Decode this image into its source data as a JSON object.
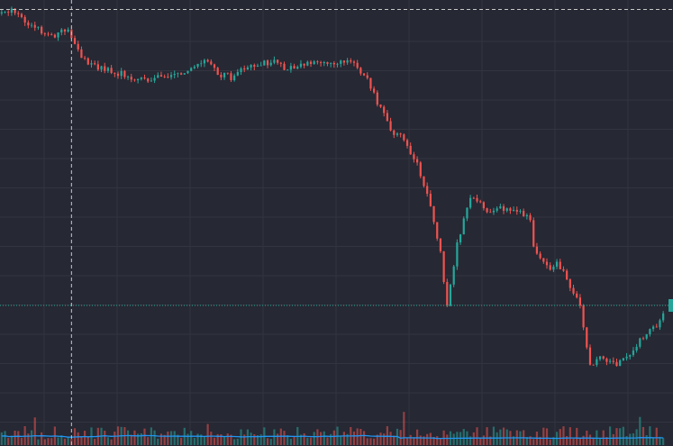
{
  "chart_data": {
    "type": "candlestick",
    "title": "",
    "xlabel": "",
    "ylabel": "",
    "grid": true,
    "legend": "none",
    "ylim": [
      0,
      100
    ],
    "colors": {
      "background": "#262833",
      "grid": "#32353f",
      "up": "#26a69a",
      "down": "#ef5350",
      "volume_ma": "#2196f3",
      "crosshair": "#c8c8c8",
      "last_price_line": "#26a69a",
      "price_marker": "#26a69a"
    },
    "anchors": [
      [
        0,
        98
      ],
      [
        4,
        99
      ],
      [
        10,
        95
      ],
      [
        16,
        92
      ],
      [
        21,
        94
      ],
      [
        23,
        90
      ],
      [
        27,
        85
      ],
      [
        33,
        84
      ],
      [
        40,
        82
      ],
      [
        45,
        81
      ],
      [
        52,
        83
      ],
      [
        58,
        84
      ],
      [
        62,
        87
      ],
      [
        66,
        83
      ],
      [
        70,
        82
      ],
      [
        76,
        85
      ],
      [
        82,
        86
      ],
      [
        87,
        84
      ],
      [
        92,
        85
      ],
      [
        97,
        86
      ],
      [
        106,
        86
      ],
      [
        111,
        82
      ],
      [
        115,
        74
      ],
      [
        119,
        68
      ],
      [
        122,
        67
      ],
      [
        126,
        60
      ],
      [
        130,
        50
      ],
      [
        133,
        38
      ],
      [
        135,
        25
      ],
      [
        138,
        40
      ],
      [
        142,
        52
      ],
      [
        147,
        49
      ],
      [
        153,
        49
      ],
      [
        160,
        47
      ],
      [
        161,
        39
      ],
      [
        166,
        34
      ],
      [
        168,
        36
      ],
      [
        172,
        30
      ],
      [
        175,
        25
      ],
      [
        178,
        10
      ],
      [
        182,
        12
      ],
      [
        186,
        10
      ],
      [
        190,
        13
      ],
      [
        194,
        17
      ],
      [
        198,
        20
      ],
      [
        200,
        23
      ]
    ],
    "candle_count": 200,
    "current_price_level": 25,
    "crosshair": {
      "candle_index": 21,
      "price_level": 99
    }
  }
}
